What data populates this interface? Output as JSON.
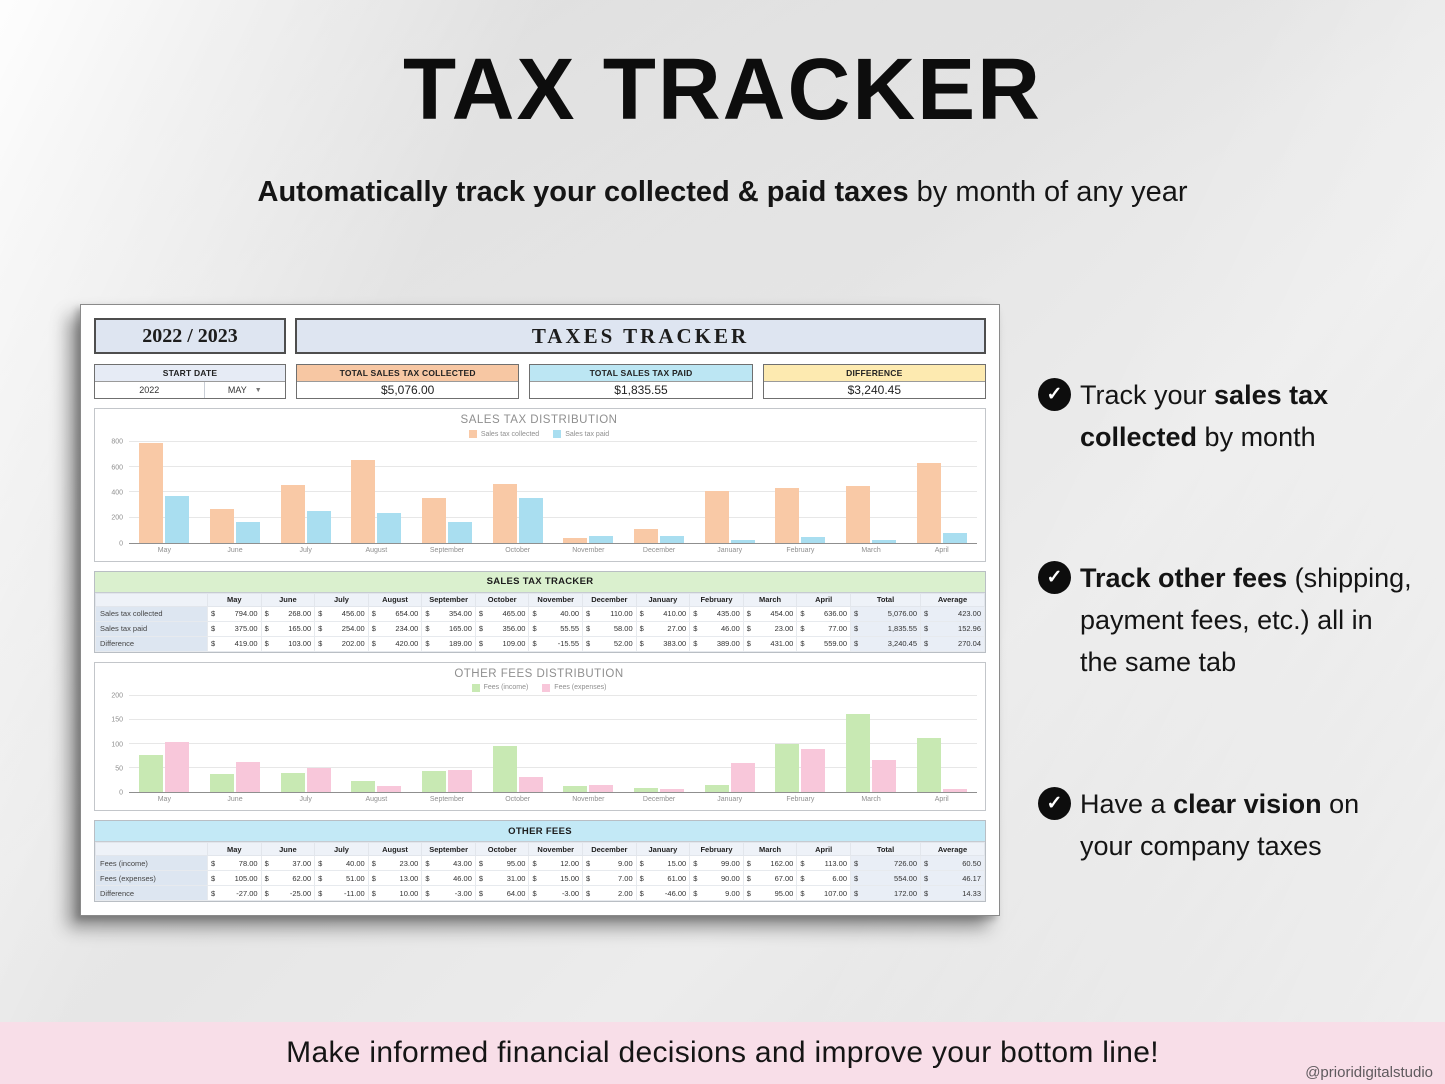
{
  "page": {
    "title": "TAX TRACKER",
    "subtitle_bold": "Automatically track your collected & paid taxes",
    "subtitle_rest": " by month of any year",
    "footer": "Make informed financial decisions and improve your bottom line!",
    "watermark": "@prioridigitalstudio"
  },
  "bullets": [
    {
      "pre": "Track your ",
      "bold": "sales tax collected",
      "post": " by month"
    },
    {
      "pre": "",
      "bold": "Track other fees",
      "post": " (shipping, payment fees, etc.) all in the same tab"
    },
    {
      "pre": "Have a ",
      "bold": "clear vision",
      "post": " on your company taxes"
    }
  ],
  "sheet": {
    "year_label": "2022 / 2023",
    "title": "TAXES TRACKER",
    "summary": {
      "start_date": {
        "label": "START DATE",
        "year": "2022",
        "month": "MAY",
        "dropdown_icon": "▼"
      },
      "cards": [
        {
          "label": "TOTAL SALES TAX COLLECTED",
          "value": "$5,076.00",
          "color": "#f7c7a3"
        },
        {
          "label": "TOTAL SALES TAX PAID",
          "value": "$1,835.55",
          "color": "#bce6f3"
        },
        {
          "label": "DIFFERENCE",
          "value": "$3,240.45",
          "color": "#fdeab0"
        }
      ]
    },
    "currency_symbol": "$",
    "tables": [
      {
        "title": "SALES TAX TRACKER",
        "header_color": "#daf0ce",
        "columns": [
          "May",
          "June",
          "July",
          "August",
          "September",
          "October",
          "November",
          "December",
          "January",
          "February",
          "March",
          "April",
          "Total",
          "Average"
        ],
        "rows": [
          {
            "label": "Sales tax collected",
            "values": [
              "794.00",
              "268.00",
              "456.00",
              "654.00",
              "354.00",
              "465.00",
              "40.00",
              "110.00",
              "410.00",
              "435.00",
              "454.00",
              "636.00",
              "5,076.00",
              "423.00"
            ]
          },
          {
            "label": "Sales tax paid",
            "values": [
              "375.00",
              "165.00",
              "254.00",
              "234.00",
              "165.00",
              "356.00",
              "55.55",
              "58.00",
              "27.00",
              "46.00",
              "23.00",
              "77.00",
              "1,835.55",
              "152.96"
            ]
          },
          {
            "label": "Difference",
            "values": [
              "419.00",
              "103.00",
              "202.00",
              "420.00",
              "189.00",
              "109.00",
              "-15.55",
              "52.00",
              "383.00",
              "389.00",
              "431.00",
              "559.00",
              "3,240.45",
              "270.04"
            ]
          }
        ]
      },
      {
        "title": "OTHER FEES",
        "header_color": "#c3e9f6",
        "columns": [
          "May",
          "June",
          "July",
          "August",
          "September",
          "October",
          "November",
          "December",
          "January",
          "February",
          "March",
          "April",
          "Total",
          "Average"
        ],
        "rows": [
          {
            "label": "Fees (income)",
            "values": [
              "78.00",
              "37.00",
              "40.00",
              "23.00",
              "43.00",
              "95.00",
              "12.00",
              "9.00",
              "15.00",
              "99.00",
              "162.00",
              "113.00",
              "726.00",
              "60.50"
            ]
          },
          {
            "label": "Fees (expenses)",
            "values": [
              "105.00",
              "62.00",
              "51.00",
              "13.00",
              "46.00",
              "31.00",
              "15.00",
              "7.00",
              "61.00",
              "90.00",
              "67.00",
              "6.00",
              "554.00",
              "46.17"
            ]
          },
          {
            "label": "Difference",
            "values": [
              "-27.00",
              "-25.00",
              "-11.00",
              "10.00",
              "-3.00",
              "64.00",
              "-3.00",
              "2.00",
              "-46.00",
              "9.00",
              "95.00",
              "107.00",
              "172.00",
              "14.33"
            ]
          }
        ]
      }
    ]
  },
  "chart_data": [
    {
      "type": "bar",
      "title": "SALES TAX DISTRIBUTION",
      "categories": [
        "May",
        "June",
        "July",
        "August",
        "September",
        "October",
        "November",
        "December",
        "January",
        "February",
        "March",
        "April"
      ],
      "series": [
        {
          "name": "Sales tax collected",
          "color": "#f9c9a6",
          "values": [
            794,
            268,
            456,
            654,
            354,
            465,
            40,
            110,
            410,
            435,
            454,
            636
          ]
        },
        {
          "name": "Sales tax paid",
          "color": "#a9def0",
          "values": [
            375,
            165,
            254,
            234,
            165,
            356,
            55.55,
            58,
            27,
            46,
            23,
            77
          ]
        }
      ],
      "ylim": [
        0,
        800
      ],
      "yticks": [
        0,
        200,
        400,
        600,
        800
      ],
      "grid": true,
      "legend_position": "top"
    },
    {
      "type": "bar",
      "title": "OTHER FEES DISTRIBUTION",
      "categories": [
        "May",
        "June",
        "July",
        "August",
        "September",
        "October",
        "November",
        "December",
        "January",
        "February",
        "March",
        "April"
      ],
      "series": [
        {
          "name": "Fees (income)",
          "color": "#c8e9b3",
          "values": [
            78,
            37,
            40,
            23,
            43,
            95,
            12,
            9,
            15,
            99,
            162,
            113
          ]
        },
        {
          "name": "Fees (expenses)",
          "color": "#f8c7da",
          "values": [
            105,
            62,
            51,
            13,
            46,
            31,
            15,
            7,
            61,
            90,
            67,
            6
          ]
        }
      ],
      "ylim": [
        0,
        200
      ],
      "yticks": [
        0,
        50,
        100,
        150,
        200
      ],
      "grid": true,
      "legend_position": "top"
    }
  ]
}
